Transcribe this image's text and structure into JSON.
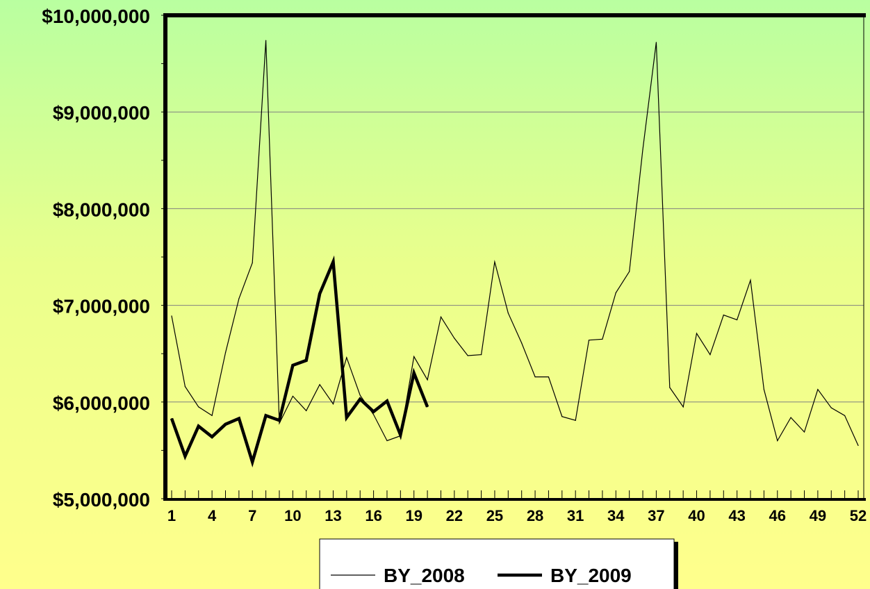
{
  "chart_data": {
    "type": "line",
    "title": "",
    "xlabel": "",
    "ylabel": "",
    "ylim": [
      5000000,
      10000000
    ],
    "xlim": [
      1,
      52
    ],
    "yticks": [
      "$5,000,000",
      "$6,000,000",
      "$7,000,000",
      "$8,000,000",
      "$9,000,000",
      "$10,000,000"
    ],
    "xticks": [
      "1",
      "4",
      "7",
      "10",
      "13",
      "16",
      "19",
      "22",
      "25",
      "28",
      "31",
      "34",
      "37",
      "40",
      "43",
      "46",
      "49",
      "52"
    ],
    "grid": "horizontal",
    "legend_position": "bottom",
    "series": [
      {
        "name": "BY_2008",
        "line": "thin",
        "color": "#000000",
        "x": [
          1,
          2,
          3,
          4,
          5,
          6,
          7,
          8,
          9,
          10,
          11,
          12,
          13,
          14,
          15,
          16,
          17,
          18,
          19,
          20,
          21,
          22,
          23,
          24,
          25,
          26,
          27,
          28,
          29,
          30,
          31,
          32,
          33,
          34,
          35,
          36,
          37,
          38,
          39,
          40,
          41,
          42,
          43,
          44,
          45,
          46,
          47,
          48,
          49,
          50,
          51,
          52
        ],
        "values": [
          6890000,
          6160000,
          5950000,
          5860000,
          6510000,
          7070000,
          7440000,
          9740000,
          5780000,
          6060000,
          5910000,
          6180000,
          5980000,
          6460000,
          6070000,
          5870000,
          5600000,
          5650000,
          6470000,
          6230000,
          6880000,
          6660000,
          6480000,
          6490000,
          7450000,
          6920000,
          6610000,
          6260000,
          6260000,
          5850000,
          5810000,
          6640000,
          6650000,
          7130000,
          7350000,
          8610000,
          9720000,
          6150000,
          5950000,
          6710000,
          6490000,
          6900000,
          6850000,
          7260000,
          6130000,
          5600000,
          5840000,
          5690000,
          6130000,
          5940000,
          5860000,
          5550000
        ]
      },
      {
        "name": "BY_2009",
        "line": "thick",
        "color": "#000000",
        "x": [
          1,
          2,
          3,
          4,
          5,
          6,
          7,
          8,
          9,
          10,
          11,
          12,
          13,
          14,
          15,
          16,
          17,
          18,
          19,
          20
        ],
        "values": [
          5830000,
          5440000,
          5750000,
          5640000,
          5770000,
          5830000,
          5380000,
          5860000,
          5810000,
          6380000,
          6430000,
          7120000,
          7450000,
          5840000,
          6030000,
          5900000,
          6010000,
          5660000,
          6300000,
          5950000
        ]
      }
    ]
  }
}
